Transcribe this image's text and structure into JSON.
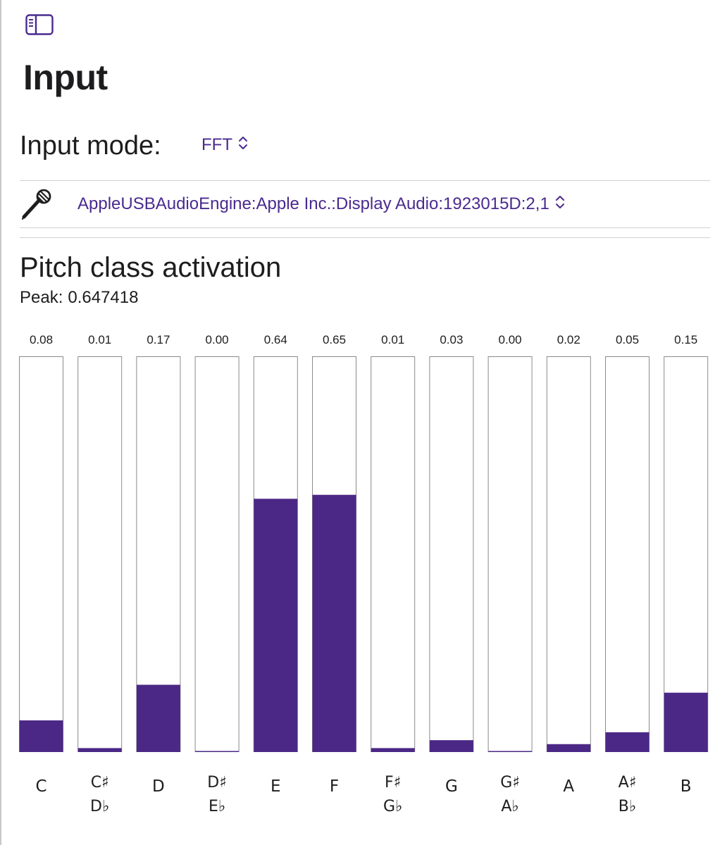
{
  "header": {
    "title": "Input",
    "sidebar_toggle_icon": "sidebar-toggle-icon"
  },
  "input_mode": {
    "label": "Input mode:",
    "value": "FFT",
    "icon": "chevron-up-down-icon"
  },
  "device": {
    "icon": "microphone-icon",
    "value": "AppleUSBAudioEngine:Apple Inc.:Display Audio:1923015D:2,1"
  },
  "pitch_section": {
    "title": "Pitch class activation",
    "peak_label": "Peak:",
    "peak_value": "0.647418"
  },
  "colors": {
    "accent": "#4a2a8f",
    "bar_fill": "#4b2886",
    "bar_border": "#8a8a8a"
  },
  "chart_data": {
    "type": "bar",
    "categories": [
      [
        "C"
      ],
      [
        "C♯",
        "D♭"
      ],
      [
        "D"
      ],
      [
        "D♯",
        "E♭"
      ],
      [
        "E"
      ],
      [
        "F"
      ],
      [
        "F♯",
        "G♭"
      ],
      [
        "G"
      ],
      [
        "G♯",
        "A♭"
      ],
      [
        "A"
      ],
      [
        "A♯",
        "B♭"
      ],
      [
        "B"
      ]
    ],
    "values": [
      0.08,
      0.01,
      0.17,
      0.0,
      0.64,
      0.65,
      0.01,
      0.03,
      0.0,
      0.02,
      0.05,
      0.15
    ],
    "value_labels": [
      "0.08",
      "0.01",
      "0.17",
      "0.00",
      "0.64",
      "0.65",
      "0.01",
      "0.03",
      "0.00",
      "0.02",
      "0.05",
      "0.15"
    ],
    "ylim": [
      0,
      1
    ],
    "grid": false,
    "title": "",
    "xlabel": "",
    "ylabel": ""
  }
}
